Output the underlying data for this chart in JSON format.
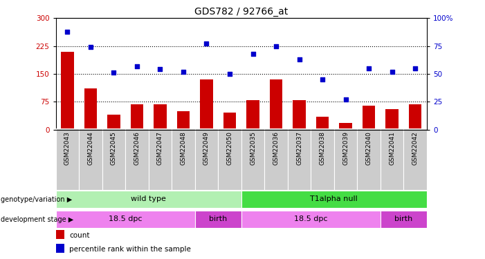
{
  "title": "GDS782 / 92766_at",
  "categories": [
    "GSM22043",
    "GSM22044",
    "GSM22045",
    "GSM22046",
    "GSM22047",
    "GSM22048",
    "GSM22049",
    "GSM22050",
    "GSM22035",
    "GSM22036",
    "GSM22037",
    "GSM22038",
    "GSM22039",
    "GSM22040",
    "GSM22041",
    "GSM22042"
  ],
  "bar_values": [
    210,
    110,
    40,
    68,
    68,
    50,
    135,
    45,
    80,
    135,
    80,
    35,
    18,
    65,
    55,
    68
  ],
  "scatter_values": [
    88,
    74,
    51,
    57,
    54,
    52,
    77,
    50,
    68,
    75,
    63,
    45,
    27,
    55,
    52,
    55
  ],
  "bar_color": "#cc0000",
  "scatter_color": "#0000cc",
  "ylim_left": [
    0,
    300
  ],
  "ylim_right": [
    0,
    100
  ],
  "yticks_left": [
    0,
    75,
    150,
    225,
    300
  ],
  "yticks_right": [
    0,
    25,
    50,
    75,
    100
  ],
  "hlines": [
    75,
    150,
    225
  ],
  "genotype_groups": [
    {
      "label": "wild type",
      "start": 0,
      "end": 8,
      "color": "#b2f0b2"
    },
    {
      "label": "T1alpha null",
      "start": 8,
      "end": 16,
      "color": "#44dd44"
    }
  ],
  "stage_groups": [
    {
      "label": "18.5 dpc",
      "start": 0,
      "end": 6,
      "color": "#ee82ee"
    },
    {
      "label": "birth",
      "start": 6,
      "end": 8,
      "color": "#cc44cc"
    },
    {
      "label": "18.5 dpc",
      "start": 8,
      "end": 14,
      "color": "#ee82ee"
    },
    {
      "label": "birth",
      "start": 14,
      "end": 16,
      "color": "#cc44cc"
    }
  ],
  "legend_items": [
    {
      "label": "count",
      "color": "#cc0000"
    },
    {
      "label": "percentile rank within the sample",
      "color": "#0000cc"
    }
  ],
  "left_label_color": "#cc0000",
  "right_label_color": "#0000cc",
  "background_color": "#ffffff",
  "bar_width": 0.55,
  "xtick_bg_color": "#cccccc",
  "row_label_arrow": "▶"
}
